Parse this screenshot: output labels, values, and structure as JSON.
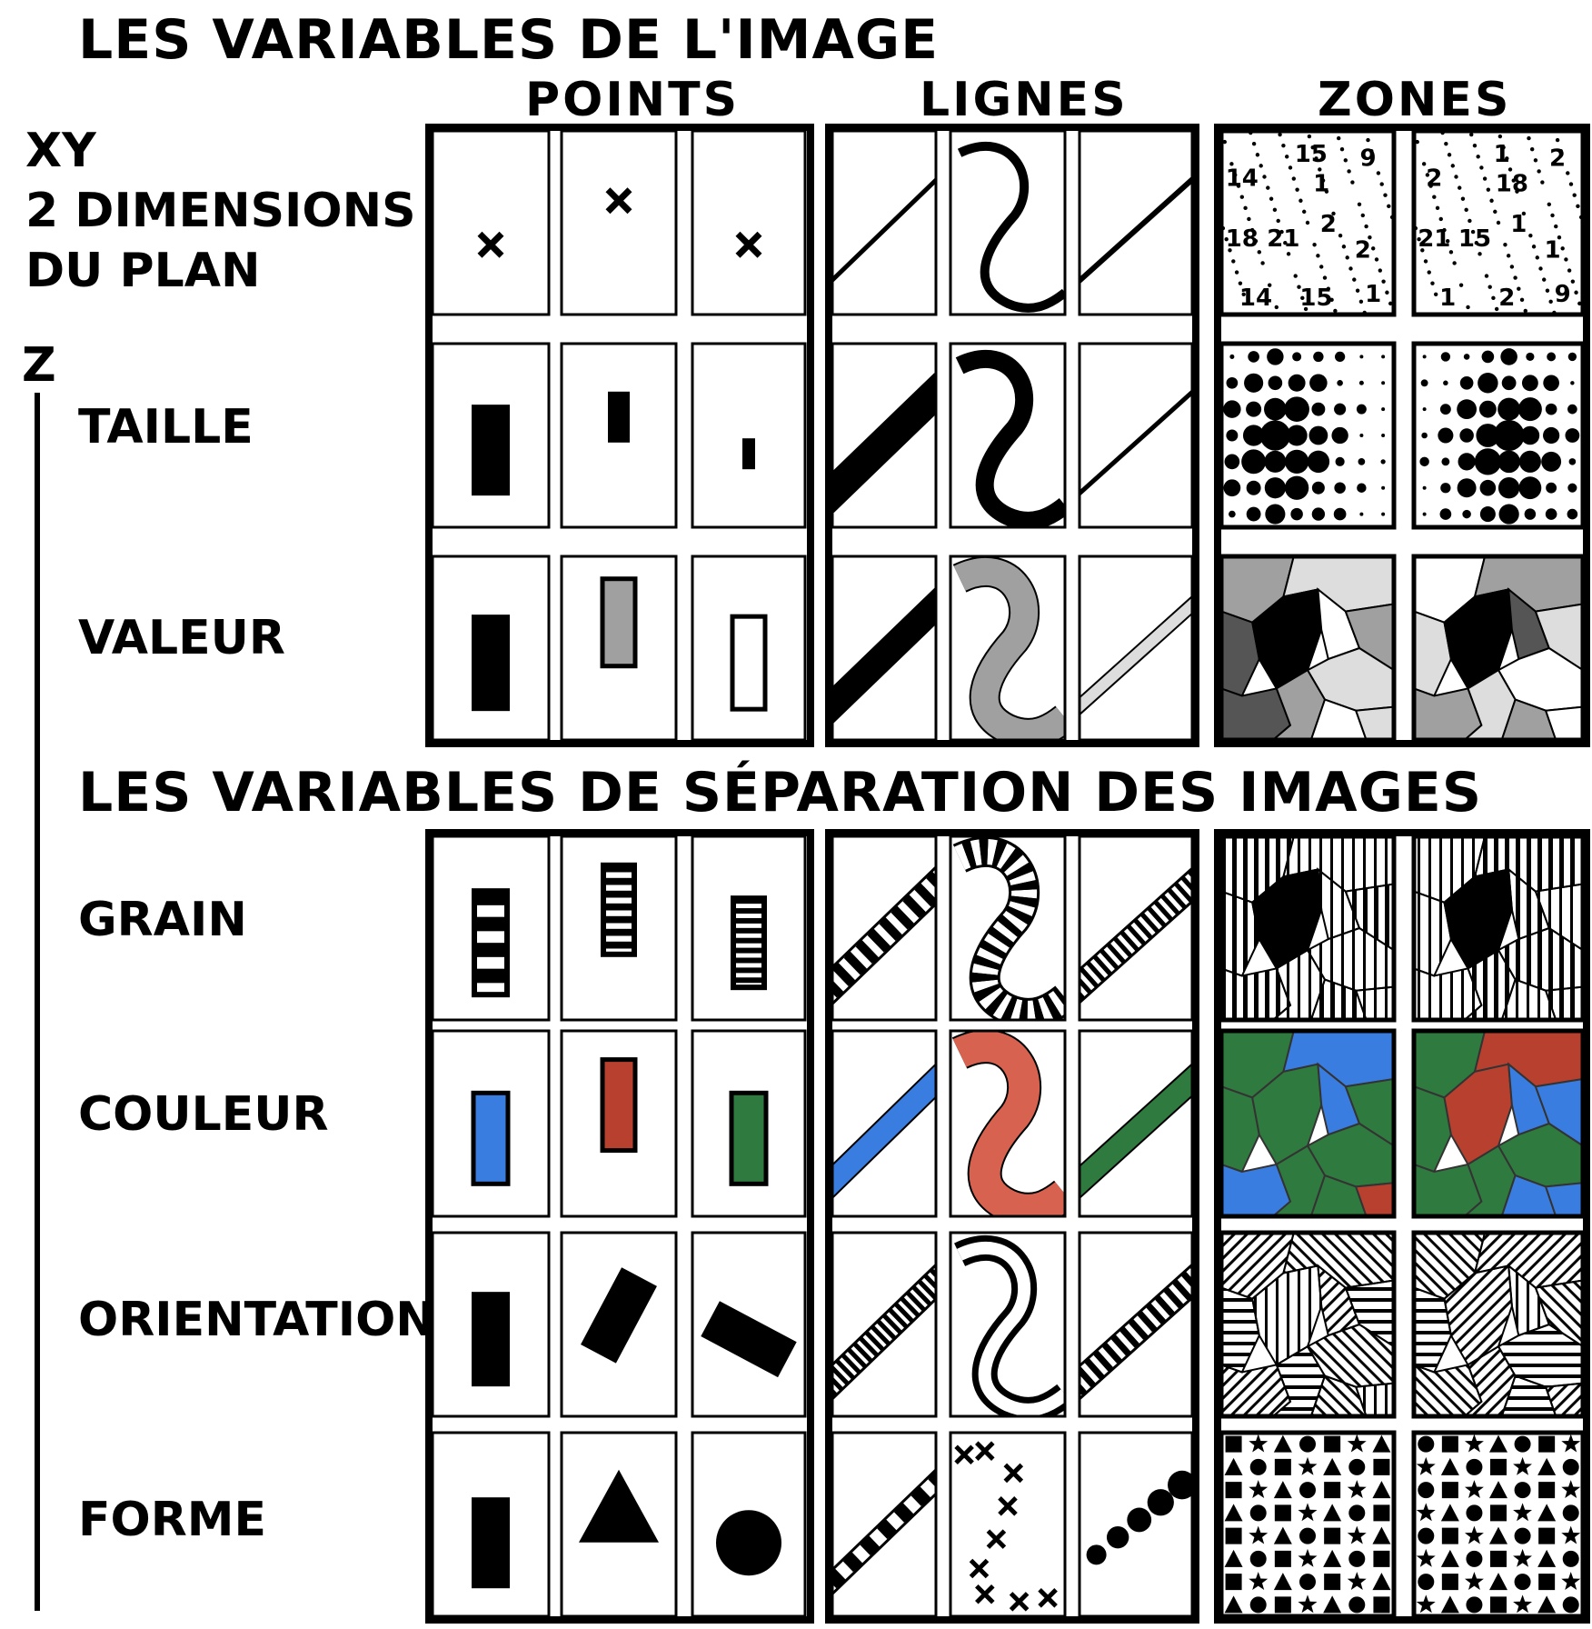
{
  "titles": {
    "image_variables": "LES VARIABLES DE L'IMAGE",
    "separation_variables": "LES VARIABLES DE SÉPARATION DES IMAGES"
  },
  "columns": {
    "points": "POINTS",
    "lines": "LIGNES",
    "zones": "ZONES"
  },
  "xy_label": {
    "line1": "XY",
    "line2": "2 DIMENSIONS",
    "line3": "DU PLAN"
  },
  "z_label": "Z",
  "rows": {
    "taille": "TAILLE",
    "valeur": "VALEUR",
    "grain": "GRAIN",
    "couleur": "COULEUR",
    "orientation": "ORIENTATION",
    "forme": "FORME"
  },
  "xy_zone_numbers": {
    "zone1": [
      "15",
      "9",
      "14",
      "1",
      "2",
      "18",
      "21",
      "2",
      "14",
      "15",
      "1"
    ],
    "zone2": [
      "1",
      "2",
      "2",
      "18",
      "1",
      "21",
      "15",
      "1",
      "1",
      "2",
      "9"
    ]
  },
  "colors": {
    "ink": "#000000",
    "gray": "#a0a0a0",
    "light_gray": "#dddddd",
    "dark_gray": "#555555",
    "blue": "#3a7de0",
    "red": "#b8402f",
    "salmon": "#d86250",
    "green": "#2f7a3e"
  }
}
